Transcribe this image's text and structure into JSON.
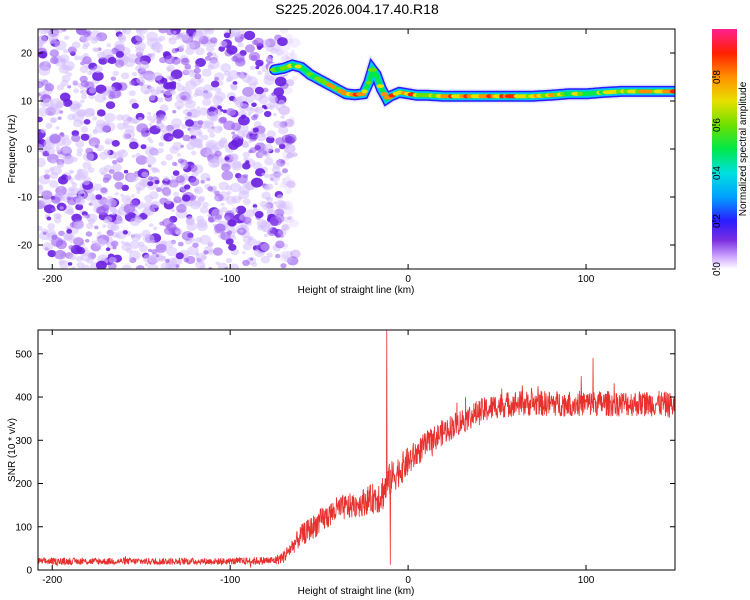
{
  "title": "S225.2026.004.17.40.R18",
  "colors": {
    "snr_line": "#e8302e",
    "noise_purple": "#7a2ee0",
    "axis": "#000000"
  },
  "chart_data": [
    {
      "type": "heatmap",
      "xlabel": "Height of straight line (km)",
      "ylabel": "Frequency (Hz)",
      "xlim": [
        -208,
        150
      ],
      "ylim": [
        -25,
        25
      ],
      "xticks": [
        -200,
        -100,
        0,
        100
      ],
      "yticks": [
        -20,
        -10,
        0,
        10,
        20
      ],
      "noise_region_x": [
        -208,
        -70
      ],
      "ridge": {
        "x": [
          -75,
          -70,
          -65,
          -60,
          -55,
          -50,
          -45,
          -40,
          -35,
          -30,
          -25,
          -22,
          -20,
          -18,
          -15,
          -12,
          -10,
          -5,
          0,
          5,
          10,
          20,
          30,
          40,
          50,
          60,
          70,
          80,
          90,
          100,
          110,
          120,
          130,
          140,
          150
        ],
        "y": [
          16.5,
          16.8,
          17.5,
          17.0,
          15.5,
          14.5,
          13.5,
          12.5,
          11.5,
          11.3,
          11.5,
          14.0,
          16.5,
          15.5,
          12.5,
          10.5,
          11.0,
          11.8,
          11.5,
          11.2,
          11.2,
          11.0,
          11.0,
          11.0,
          11.0,
          11.0,
          11.0,
          11.2,
          11.5,
          11.5,
          11.8,
          12.0,
          12.0,
          12.0,
          12.0
        ],
        "amplitude": [
          0.55,
          0.6,
          0.65,
          0.6,
          0.55,
          0.6,
          0.7,
          0.75,
          0.85,
          0.9,
          0.85,
          0.65,
          0.55,
          0.6,
          0.75,
          0.85,
          0.9,
          0.8,
          0.85,
          0.8,
          0.75,
          0.8,
          0.85,
          0.8,
          0.85,
          0.8,
          0.75,
          0.7,
          0.65,
          0.6,
          0.65,
          0.7,
          0.75,
          0.8,
          0.85
        ]
      },
      "colorbar": {
        "label": "Normalized spectral amplitude",
        "range": [
          0.0,
          1.0
        ],
        "ticks": [
          "0.0",
          "0.2",
          "0.4",
          "0.6",
          "0.8"
        ],
        "tick_values": [
          0.0,
          0.2,
          0.4,
          0.6,
          0.8
        ]
      }
    },
    {
      "type": "line",
      "xlabel": "Height of straight line (km)",
      "ylabel": "SNR (10 * v/v)",
      "xlim": [
        -208,
        150
      ],
      "ylim": [
        0,
        555
      ],
      "xticks": [
        -200,
        -100,
        0,
        100
      ],
      "yticks": [
        0,
        100,
        200,
        300,
        400,
        500
      ],
      "grid": false,
      "series": [
        {
          "trend_x": [
            -208,
            -100,
            -75,
            -70,
            -60,
            -50,
            -40,
            -30,
            -20,
            -15,
            -10,
            0,
            10,
            20,
            30,
            40,
            50,
            60,
            70,
            80,
            90,
            100,
            110,
            120,
            130,
            140,
            150
          ],
          "trend_y": [
            20,
            20,
            22,
            30,
            80,
            110,
            140,
            150,
            165,
            175,
            210,
            250,
            290,
            320,
            345,
            365,
            380,
            385,
            385,
            385,
            385,
            385,
            385,
            385,
            385,
            385,
            380
          ],
          "noise_amp": [
            8,
            8,
            10,
            15,
            25,
            30,
            30,
            30,
            35,
            45,
            40,
            35,
            30,
            30,
            30,
            30,
            30,
            30,
            30,
            30,
            30,
            30,
            30,
            30,
            30,
            30,
            30
          ],
          "spikes": [
            {
              "x": -12,
              "y": 555
            },
            {
              "x": -10,
              "y": 12
            },
            {
              "x": 104,
              "y": 490
            }
          ]
        }
      ]
    }
  ]
}
